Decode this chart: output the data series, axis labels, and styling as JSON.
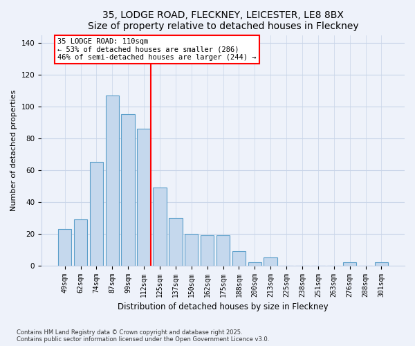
{
  "title": "35, LODGE ROAD, FLECKNEY, LEICESTER, LE8 8BX",
  "subtitle": "Size of property relative to detached houses in Fleckney",
  "xlabel": "Distribution of detached houses by size in Fleckney",
  "ylabel": "Number of detached properties",
  "bar_labels": [
    "49sqm",
    "62sqm",
    "74sqm",
    "87sqm",
    "99sqm",
    "112sqm",
    "125sqm",
    "137sqm",
    "150sqm",
    "162sqm",
    "175sqm",
    "188sqm",
    "200sqm",
    "213sqm",
    "225sqm",
    "238sqm",
    "251sqm",
    "263sqm",
    "276sqm",
    "288sqm",
    "301sqm"
  ],
  "bar_values": [
    23,
    29,
    65,
    107,
    95,
    86,
    49,
    30,
    20,
    19,
    19,
    9,
    2,
    5,
    0,
    0,
    0,
    0,
    2,
    0,
    2
  ],
  "bar_color": "#c5d8ed",
  "bar_edge_color": "#5a9ec9",
  "vline_index": 5,
  "vline_color": "red",
  "annotation_line1": "35 LODGE ROAD: 110sqm",
  "annotation_line2": "← 53% of detached houses are smaller (286)",
  "annotation_line3": "46% of semi-detached houses are larger (244) →",
  "ylim": [
    0,
    145
  ],
  "yticks": [
    0,
    20,
    40,
    60,
    80,
    100,
    120,
    140
  ],
  "footnote1": "Contains HM Land Registry data © Crown copyright and database right 2025.",
  "footnote2": "Contains public sector information licensed under the Open Government Licence v3.0.",
  "bg_color": "#eef2fa",
  "grid_color": "#c8d4e8",
  "title_fontsize": 10,
  "tick_fontsize": 7,
  "ylabel_fontsize": 8,
  "xlabel_fontsize": 8.5
}
